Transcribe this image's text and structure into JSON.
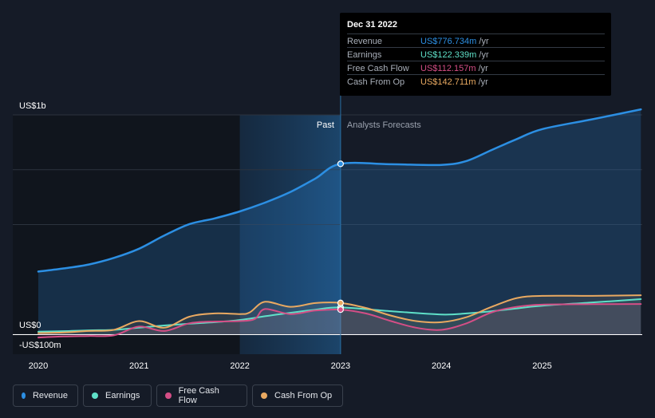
{
  "chart_data": {
    "type": "line",
    "y_axis_labels": [
      "US$1b",
      "US$0",
      "-US$100m"
    ],
    "ylim": [
      -100,
      1000
    ],
    "x_ticks": [
      "2020",
      "2021",
      "2022",
      "2023",
      "2024",
      "2025"
    ],
    "xlim": [
      2019.8,
      2025.98
    ],
    "past_label": "Past",
    "forecast_label": "Analysts Forecasts",
    "divider_x": 2023.0,
    "past_shade_start": 2022.0,
    "series": [
      {
        "name": "Revenue",
        "color": "#2c8fe3",
        "points": [
          [
            2020.0,
            286
          ],
          [
            2020.25,
            300
          ],
          [
            2020.5,
            318
          ],
          [
            2020.75,
            348
          ],
          [
            2021.0,
            390
          ],
          [
            2021.25,
            450
          ],
          [
            2021.5,
            502
          ],
          [
            2021.75,
            528
          ],
          [
            2022.0,
            560
          ],
          [
            2022.25,
            600
          ],
          [
            2022.5,
            648
          ],
          [
            2022.75,
            710
          ],
          [
            2023.0,
            776.7
          ],
          [
            2023.5,
            775
          ],
          [
            2024.0,
            772
          ],
          [
            2024.25,
            790
          ],
          [
            2024.5,
            840
          ],
          [
            2024.75,
            890
          ],
          [
            2025.0,
            935
          ],
          [
            2025.5,
            980
          ],
          [
            2025.98,
            1025
          ]
        ]
      },
      {
        "name": "Earnings",
        "color": "#5fe0c8",
        "points": [
          [
            2020.0,
            12
          ],
          [
            2020.25,
            14
          ],
          [
            2020.5,
            18
          ],
          [
            2020.75,
            20
          ],
          [
            2021.0,
            30
          ],
          [
            2021.25,
            40
          ],
          [
            2021.5,
            48
          ],
          [
            2021.75,
            55
          ],
          [
            2022.0,
            65
          ],
          [
            2022.25,
            82
          ],
          [
            2022.5,
            98
          ],
          [
            2022.75,
            112
          ],
          [
            2023.0,
            122.3
          ],
          [
            2023.5,
            105
          ],
          [
            2024.0,
            90
          ],
          [
            2024.25,
            95
          ],
          [
            2024.5,
            105
          ],
          [
            2024.75,
            118
          ],
          [
            2025.0,
            130
          ],
          [
            2025.5,
            145
          ],
          [
            2025.98,
            160
          ]
        ]
      },
      {
        "name": "Free Cash Flow",
        "color": "#d44e86",
        "points": [
          [
            2020.0,
            -15
          ],
          [
            2020.25,
            -10
          ],
          [
            2020.5,
            -8
          ],
          [
            2020.75,
            -5
          ],
          [
            2021.0,
            35
          ],
          [
            2021.25,
            15
          ],
          [
            2021.5,
            50
          ],
          [
            2021.75,
            58
          ],
          [
            2022.0,
            60
          ],
          [
            2022.15,
            70
          ],
          [
            2022.25,
            115
          ],
          [
            2022.5,
            92
          ],
          [
            2022.75,
            108
          ],
          [
            2023.0,
            112.2
          ],
          [
            2023.25,
            95
          ],
          [
            2023.5,
            60
          ],
          [
            2023.75,
            30
          ],
          [
            2024.0,
            20
          ],
          [
            2024.25,
            50
          ],
          [
            2024.5,
            100
          ],
          [
            2024.75,
            125
          ],
          [
            2025.0,
            135
          ],
          [
            2025.5,
            137
          ],
          [
            2025.98,
            138
          ]
        ]
      },
      {
        "name": "Cash From Op",
        "color": "#e9a961",
        "points": [
          [
            2020.0,
            5
          ],
          [
            2020.25,
            8
          ],
          [
            2020.5,
            15
          ],
          [
            2020.75,
            20
          ],
          [
            2021.0,
            60
          ],
          [
            2021.25,
            30
          ],
          [
            2021.5,
            80
          ],
          [
            2021.75,
            95
          ],
          [
            2022.0,
            92
          ],
          [
            2022.1,
            100
          ],
          [
            2022.25,
            148
          ],
          [
            2022.5,
            125
          ],
          [
            2022.75,
            142
          ],
          [
            2023.0,
            142.7
          ],
          [
            2023.25,
            120
          ],
          [
            2023.5,
            85
          ],
          [
            2023.75,
            60
          ],
          [
            2024.0,
            55
          ],
          [
            2024.25,
            78
          ],
          [
            2024.5,
            125
          ],
          [
            2024.75,
            165
          ],
          [
            2025.0,
            175
          ],
          [
            2025.5,
            175
          ],
          [
            2025.98,
            178
          ]
        ]
      }
    ]
  },
  "tooltip": {
    "date": "Dec 31 2022",
    "rows": [
      {
        "label": "Revenue",
        "value": "US$776.734m",
        "unit": "/yr",
        "color": "#2c8fe3"
      },
      {
        "label": "Earnings",
        "value": "US$122.339m",
        "unit": "/yr",
        "color": "#5fe0c8"
      },
      {
        "label": "Free Cash Flow",
        "value": "US$112.157m",
        "unit": "/yr",
        "color": "#d44e86"
      },
      {
        "label": "Cash From Op",
        "value": "US$142.711m",
        "unit": "/yr",
        "color": "#e9a961"
      }
    ]
  },
  "legend": [
    {
      "label": "Revenue",
      "color": "#2c8fe3"
    },
    {
      "label": "Earnings",
      "color": "#5fe0c8"
    },
    {
      "label": "Free Cash Flow",
      "color": "#d44e86"
    },
    {
      "label": "Cash From Op",
      "color": "#e9a961"
    }
  ]
}
